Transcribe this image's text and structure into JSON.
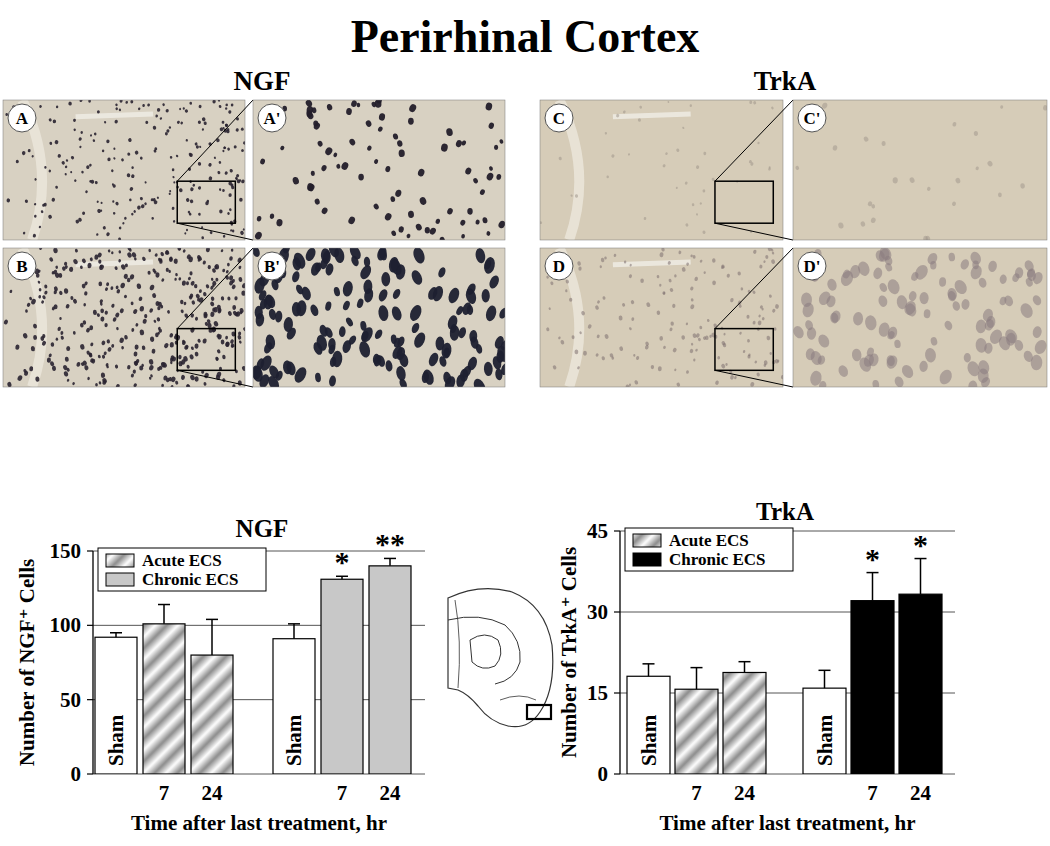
{
  "title": "Perirhinal Cortex",
  "micrographs": [
    {
      "header": "NGF",
      "panels": [
        "A",
        "A'",
        "B",
        "B'"
      ]
    },
    {
      "header": "TrkA",
      "panels": [
        "C",
        "C'",
        "D",
        "D'"
      ]
    }
  ],
  "chart_data": [
    {
      "type": "bar",
      "title": "NGF",
      "x_label": "Time after last treatment, hr",
      "y_label": "Number of  NGF⁺ Cells",
      "categories": [
        "Sham",
        "7",
        "24",
        "Sham",
        "7",
        "24"
      ],
      "series": [
        {
          "name": "Acute ECS",
          "color": "#8c8c8c",
          "colors": [
            "#ffffff",
            "#8c8c8c",
            "#8c8c8c",
            null,
            null,
            null
          ],
          "values": [
            92,
            101,
            80,
            null,
            null,
            null
          ],
          "errors": [
            3,
            13,
            24,
            null,
            null,
            null
          ]
        },
        {
          "name": "Chronic ECS",
          "color": "#c8c8c8",
          "colors": [
            null,
            null,
            null,
            "#ffffff",
            "#c8c8c8",
            "#c8c8c8"
          ],
          "values": [
            null,
            null,
            null,
            91,
            131,
            140
          ],
          "errors": [
            null,
            null,
            null,
            10,
            2,
            5
          ],
          "significance": [
            null,
            null,
            null,
            null,
            "*",
            "**"
          ]
        }
      ],
      "ylim": [
        0,
        150
      ],
      "yticks": [
        0,
        50,
        100,
        150
      ],
      "grid": true,
      "legend": "upper left"
    },
    {
      "type": "bar",
      "title": "TrkA",
      "x_label": "Time after last treatment, hr",
      "y_label": "Number of TrkA⁺ Cells",
      "categories": [
        "Sham",
        "7",
        "24",
        "Sham",
        "7",
        "24"
      ],
      "series": [
        {
          "name": "Acute ECS",
          "color": "#8c8c8c",
          "colors": [
            "#ffffff",
            "#8c8c8c",
            "#8c8c8c",
            null,
            null,
            null
          ],
          "values": [
            18.1,
            15.7,
            18.8,
            null,
            null,
            null
          ],
          "errors": [
            2.3,
            4,
            2,
            null,
            null,
            null
          ]
        },
        {
          "name": "Chronic ECS",
          "color": "#000000",
          "colors": [
            null,
            null,
            null,
            "#ffffff",
            "#000000",
            "#000000"
          ],
          "values": [
            null,
            null,
            null,
            15.9,
            32.1,
            33.3
          ],
          "errors": [
            null,
            null,
            null,
            3.3,
            5.2,
            6.6
          ],
          "significance": [
            null,
            null,
            null,
            null,
            "*",
            "*"
          ]
        }
      ],
      "ylim": [
        0,
        45
      ],
      "yticks": [
        0,
        15,
        30,
        45
      ],
      "grid": true,
      "legend": "upper left"
    }
  ]
}
